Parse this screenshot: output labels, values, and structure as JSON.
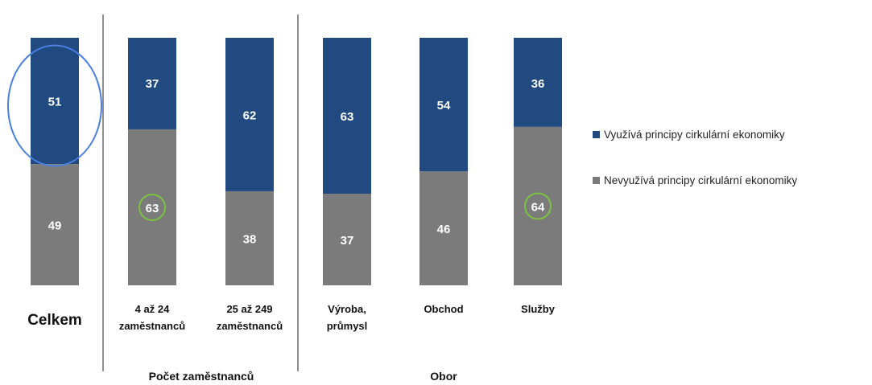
{
  "colors": {
    "uses": "#204a80",
    "not_uses": "#7b7b7b",
    "blue_ring": "#4a7fe0",
    "green_ring": "#7cc242",
    "divider": "#222222"
  },
  "chart_data": {
    "type": "bar",
    "stacked": true,
    "normalized_percent": true,
    "categories": [
      [
        "Celkem"
      ],
      [
        "4 až 24",
        "zaměstnanců"
      ],
      [
        "25 až 249",
        "zaměstnanců"
      ],
      [
        "Výroba,",
        "průmysl"
      ],
      [
        "Obchod"
      ],
      [
        "Služby"
      ]
    ],
    "series": [
      {
        "name": "Využívá principy cirkulární ekonomiky",
        "values": [
          51,
          37,
          62,
          63,
          54,
          36
        ]
      },
      {
        "name": "Nevyužívá principy cirkulární ekonomiky",
        "values": [
          49,
          63,
          38,
          37,
          46,
          64
        ]
      }
    ],
    "groups": [
      {
        "label": "Počet zaměstnanců",
        "categories": [
          1,
          2
        ]
      },
      {
        "label": "Obor",
        "categories": [
          3,
          4,
          5
        ]
      }
    ],
    "ylim": [
      0,
      100
    ],
    "legend_position": "right",
    "highlights": [
      {
        "category": 0,
        "series": 0,
        "shape": "ellipse",
        "color": "blue"
      },
      {
        "category": 1,
        "series": 1,
        "shape": "circle",
        "color": "green"
      },
      {
        "category": 5,
        "series": 1,
        "shape": "circle",
        "color": "green"
      }
    ]
  }
}
